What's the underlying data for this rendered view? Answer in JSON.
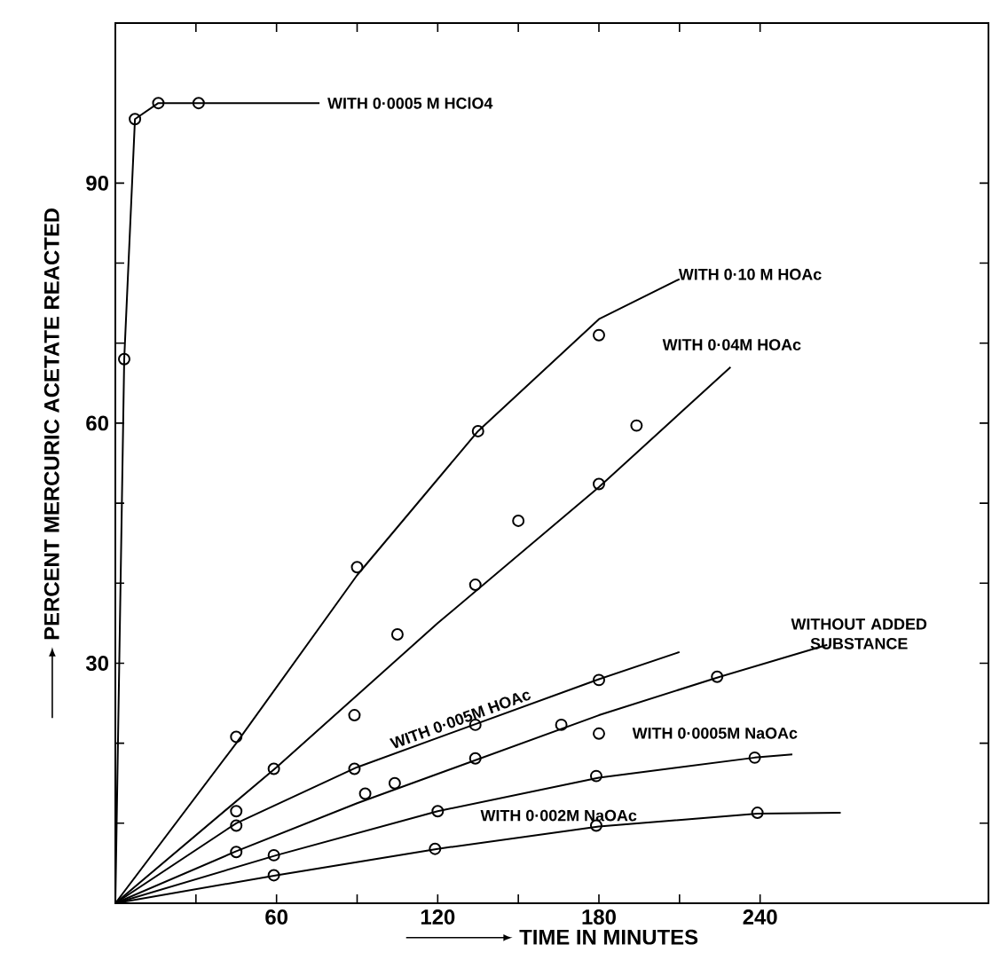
{
  "chart_data": {
    "type": "line",
    "xlabel": "TIME IN MINUTES",
    "ylabel": "PERCENT MERCURIC ACETATE REACTED",
    "xlim": [
      0,
      325
    ],
    "ylim": [
      0,
      110
    ],
    "xticks": [
      {
        "value": 30,
        "label": null
      },
      60,
      {
        "value": 90,
        "label": null
      },
      120,
      {
        "value": 150,
        "label": null
      },
      180,
      {
        "value": 210,
        "label": null
      },
      240
    ],
    "yticks": [
      {
        "value": 10,
        "label": null
      },
      {
        "value": 20,
        "label": null
      },
      30,
      {
        "value": 40,
        "label": null
      },
      {
        "value": 50,
        "label": null
      },
      60,
      {
        "value": 70,
        "label": null
      },
      {
        "value": 80,
        "label": null
      },
      90
    ],
    "grid": false,
    "series": [
      {
        "name": "WITH 0·0005 M HClO4",
        "marker": "none",
        "x": [
          0,
          3.3,
          7.3,
          16,
          31,
          76
        ],
        "values": [
          0,
          68,
          98,
          100,
          100,
          100
        ]
      },
      {
        "type": "scatter",
        "marker": "circle",
        "x": [
          3.3,
          7.3,
          16,
          31
        ],
        "values": [
          68,
          98,
          100,
          100
        ]
      },
      {
        "name": "WITH 0·10 M HOAc",
        "marker": "none",
        "x": [
          0,
          45,
          90,
          135,
          180,
          210
        ],
        "values": [
          0,
          20,
          41,
          59,
          73,
          78
        ]
      },
      {
        "type": "scatter",
        "marker": "circle",
        "x": [
          45,
          90,
          135,
          180
        ],
        "values": [
          20.8,
          42,
          59,
          71
        ]
      },
      {
        "name": "WITH 0·04M HOAc",
        "marker": "none",
        "x": [
          0,
          60,
          120,
          180,
          229
        ],
        "values": [
          0,
          17,
          35,
          52,
          67
        ]
      },
      {
        "type": "scatter",
        "marker": "circle",
        "x": [
          45,
          59,
          89,
          105,
          134,
          150,
          180,
          194
        ],
        "values": [
          11.5,
          16.8,
          23.5,
          33.6,
          39.8,
          47.8,
          52.4,
          59.7
        ]
      },
      {
        "name": "WITH 0·005M HOAc",
        "marker": "none",
        "x": [
          0,
          45,
          90,
          135,
          180,
          210
        ],
        "values": [
          0,
          10,
          17,
          22.5,
          28,
          31.4
        ]
      },
      {
        "type": "scatter",
        "marker": "circle",
        "x": [
          45,
          89,
          134,
          180
        ],
        "values": [
          9.7,
          16.8,
          22.3,
          27.9
        ]
      },
      {
        "name": "WITHOUT ADDED SUBSTANCE",
        "marker": "none",
        "x": [
          0,
          45,
          90,
          135,
          180,
          224,
          265
        ],
        "values": [
          0,
          6.5,
          12.5,
          18,
          23.5,
          28.2,
          32.3
        ]
      },
      {
        "type": "scatter",
        "marker": "circle",
        "x": [
          45,
          93,
          104,
          134,
          166,
          180,
          224
        ],
        "values": [
          6.4,
          13.7,
          15,
          18.1,
          22.3,
          21.2,
          28.3
        ]
      },
      {
        "name": "WITH 0·0005M NaOAc",
        "marker": "none",
        "x": [
          0,
          60,
          120,
          180,
          238,
          252
        ],
        "values": [
          0,
          6,
          11.5,
          15.7,
          18.2,
          18.6
        ]
      },
      {
        "type": "scatter",
        "marker": "circle",
        "x": [
          59,
          120,
          179,
          238
        ],
        "values": [
          6,
          11.5,
          15.9,
          18.2
        ]
      },
      {
        "name": "WITH 0·002M NaOAc",
        "marker": "none",
        "x": [
          0,
          60,
          120,
          180,
          239,
          270
        ],
        "values": [
          0,
          3.5,
          6.8,
          9.6,
          11.2,
          11.3
        ]
      },
      {
        "type": "scatter",
        "marker": "circle",
        "x": [
          59,
          119,
          179,
          239
        ],
        "values": [
          3.5,
          6.8,
          9.7,
          11.3
        ]
      }
    ]
  }
}
